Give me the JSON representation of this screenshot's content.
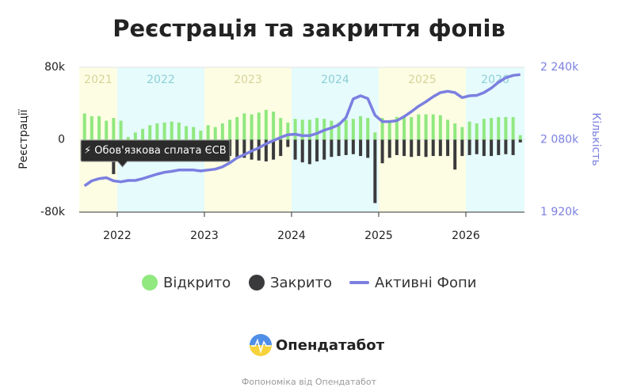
{
  "chart_data": {
    "type": "bar-line",
    "title": "Реєстрація та закриття фопів",
    "y_label": "Реєстрації",
    "y2_label": "Кількість",
    "xlim": [
      2021.564,
      2026.673
    ],
    "xticks": [
      2022,
      2023,
      2024,
      2025,
      2026
    ],
    "ylim": [
      -80,
      80
    ],
    "yticks": [
      {
        "value": 80,
        "label": "80k"
      },
      0,
      {
        "value": -80,
        "label": "-80k"
      }
    ],
    "y2lim": [
      1920,
      2240
    ],
    "y2ticks": [
      {
        "value": 2240,
        "label": "2 240k"
      },
      {
        "value": 2080,
        "label": "2 080k"
      },
      {
        "value": 1920,
        "label": "1 920k"
      }
    ],
    "bands": [
      {
        "label": "2021",
        "from": 2021.564,
        "to": 2022,
        "color": "#fdfde4"
      },
      {
        "label": "2022",
        "from": 2022,
        "to": 2023,
        "color": "#e5fbfc"
      },
      {
        "label": "2023",
        "from": 2023,
        "to": 2024,
        "color": "#fdfde4"
      },
      {
        "label": "2024",
        "from": 2024,
        "to": 2025,
        "color": "#e5fbfc"
      },
      {
        "label": "2025",
        "from": 2025,
        "to": 2026,
        "color": "#fdfde4"
      },
      {
        "label": "2026",
        "from": 2026,
        "to": 2026.673,
        "color": "#e5fbfc"
      }
    ],
    "x": [
      2021.625,
      2021.708,
      2021.792,
      2021.875,
      2021.958,
      2022.042,
      2022.125,
      2022.208,
      2022.292,
      2022.375,
      2022.458,
      2022.542,
      2022.625,
      2022.708,
      2022.792,
      2022.875,
      2022.958,
      2023.042,
      2023.125,
      2023.208,
      2023.292,
      2023.375,
      2023.458,
      2023.542,
      2023.625,
      2023.708,
      2023.792,
      2023.875,
      2023.958,
      2024.042,
      2024.125,
      2024.208,
      2024.292,
      2024.375,
      2024.458,
      2024.542,
      2024.625,
      2024.708,
      2024.792,
      2024.875,
      2024.958,
      2025.042,
      2025.125,
      2025.208,
      2025.292,
      2025.375,
      2025.458,
      2025.542,
      2025.625,
      2025.708,
      2025.792,
      2025.875,
      2025.958,
      2026.042,
      2026.125,
      2026.208,
      2026.292,
      2026.375,
      2026.458,
      2026.542,
      2026.625
    ],
    "series": [
      {
        "name": "Відкрито",
        "kind": "bar",
        "color": "#90e87f",
        "values": [
          29,
          26,
          26,
          21,
          24,
          21,
          3,
          8,
          12,
          16,
          18,
          19,
          20,
          19,
          15,
          14,
          10,
          16,
          14,
          18,
          22,
          25,
          29,
          28,
          30,
          33,
          31,
          24,
          19,
          23,
          22,
          22,
          24,
          23,
          21,
          19,
          22,
          23,
          26,
          24,
          8,
          24,
          21,
          25,
          27,
          25,
          28,
          28,
          28,
          27,
          22,
          18,
          14,
          20,
          18,
          23,
          24,
          25,
          25,
          25,
          5
        ]
      },
      {
        "name": "Закрито",
        "kind": "bar",
        "color": "#3a3a3c",
        "values": [
          -10,
          -13,
          -15,
          -17,
          -38,
          -12,
          -18,
          -15,
          -16,
          -15,
          -14,
          -14,
          -15,
          -14,
          -13,
          -13,
          -12,
          -14,
          -13,
          -15,
          -18,
          -19,
          -20,
          -22,
          -23,
          -24,
          -22,
          -18,
          -8,
          -22,
          -25,
          -27,
          -24,
          -22,
          -19,
          -18,
          -17,
          -16,
          -18,
          -20,
          -70,
          -26,
          -20,
          -17,
          -18,
          -19,
          -18,
          -19,
          -18,
          -18,
          -18,
          -33,
          -18,
          -17,
          -16,
          -18,
          -18,
          -17,
          -16,
          -17,
          -3
        ]
      },
      {
        "name": "Активні Фопи",
        "kind": "line",
        "axis": "y2",
        "color": "#7b7fe0",
        "values": [
          1978,
          1989,
          1994,
          1996,
          1989,
          1987,
          1990,
          1990,
          1994,
          1999,
          2004,
          2008,
          2010,
          2013,
          2013,
          2013,
          2011,
          2013,
          2015,
          2020,
          2029,
          2040,
          2047,
          2055,
          2062,
          2071,
          2078,
          2085,
          2091,
          2092,
          2089,
          2089,
          2094,
          2101,
          2106,
          2113,
          2129,
          2170,
          2177,
          2171,
          2134,
          2120,
          2120,
          2122,
          2131,
          2142,
          2154,
          2164,
          2175,
          2184,
          2187,
          2184,
          2173,
          2177,
          2178,
          2184,
          2194,
          2207,
          2217,
          2222,
          2224
        ]
      }
    ],
    "annotation": {
      "text": "⚡ Обов'язкова сплата ЄСВ",
      "x": 2022.06
    },
    "brand": "Опендатабот",
    "footer": "Фопономіка від Опендатабот"
  }
}
